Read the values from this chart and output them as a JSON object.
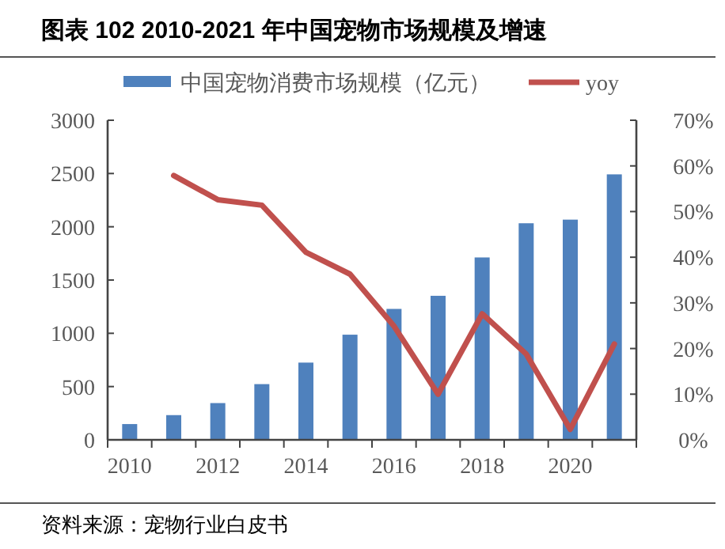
{
  "chart_data": {
    "type": "bar",
    "title": "图表 102 2010-2021 年中国宠物市场规模及增速",
    "categories": [
      "2010",
      null,
      "2012",
      null,
      "2014",
      null,
      "2016",
      null,
      "2018",
      null,
      "2020",
      null
    ],
    "series": [
      {
        "name": "中国宠物消费市场规模（亿元）",
        "color": "#4f81bd",
        "values": [
          148,
          232,
          345,
          523,
          725,
          987,
          1229,
          1352,
          1712,
          2033,
          2067,
          2492
        ]
      },
      {
        "name": "yoy",
        "type": "line",
        "axis": "y2",
        "color": "#c0504d",
        "values": [
          null,
          57.9,
          52.6,
          51.4,
          41.1,
          36.3,
          24.9,
          10.0,
          27.6,
          18.8,
          2.3,
          21.0
        ]
      }
    ],
    "ylim": [
      0,
      3000
    ],
    "yticks": [
      0,
      500,
      1000,
      1500,
      2000,
      2500,
      3000
    ],
    "y2lim": [
      0,
      70
    ],
    "y2ticks": [
      {
        "value": 0,
        "label": "0%"
      },
      {
        "value": 10,
        "label": "10%"
      },
      {
        "value": 20,
        "label": "20%"
      },
      {
        "value": 30,
        "label": "30%"
      },
      {
        "value": 40,
        "label": "40%"
      },
      {
        "value": 50,
        "label": "50%"
      },
      {
        "value": 60,
        "label": "60%"
      },
      {
        "value": 70,
        "label": "70%"
      }
    ],
    "legend": "top",
    "grid": false,
    "annotations": [
      "资料来源：宠物行业白皮书"
    ]
  }
}
